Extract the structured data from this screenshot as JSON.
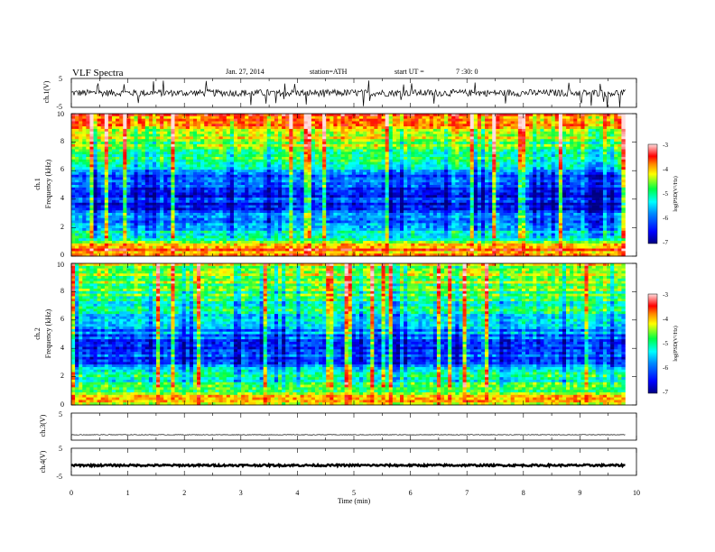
{
  "header": {
    "title": "VLF Spectra",
    "date": "Jan. 27, 2014",
    "station": "station=ATH",
    "start_label": "start UT =",
    "start_time": "7 :30: 0"
  },
  "chart_data": [
    {
      "type": "line",
      "name": "ch1-waveform",
      "ylabel": "ch.1(V)",
      "yticks": [
        "5",
        "-5"
      ],
      "ylim": [
        -5,
        5
      ],
      "xlim": [
        0,
        10
      ],
      "baseline": 0,
      "noise_amplitude": 1.2,
      "data_end_min": 9.8
    },
    {
      "type": "heatmap",
      "name": "ch1-spectrogram",
      "ylabel_line1": "ch.1",
      "ylabel_line2": "Frequency (kHz)",
      "yticks": [
        "0",
        "2",
        "4",
        "6",
        "8",
        "10"
      ],
      "ylim": [
        0,
        10
      ],
      "xlim": [
        0,
        10
      ],
      "data_end_min": 9.8,
      "colorbar": {
        "label": "log(PSD(V²/Hz)",
        "ticks": [
          "-3",
          "-4",
          "-5",
          "-6",
          "-7"
        ],
        "range": [
          -7,
          -3
        ]
      },
      "band_profile": [
        {
          "f": 0,
          "level": -4.3
        },
        {
          "f": 0.5,
          "level": -3.6
        },
        {
          "f": 1.0,
          "level": -4.9
        },
        {
          "f": 2.0,
          "level": -5.6
        },
        {
          "f": 3.5,
          "level": -6.4
        },
        {
          "f": 5.5,
          "level": -6.2
        },
        {
          "f": 6.0,
          "level": -5.5
        },
        {
          "f": 7.5,
          "level": -4.9
        },
        {
          "f": 9.0,
          "level": -4.2
        },
        {
          "f": 10.0,
          "level": -3.8
        }
      ]
    },
    {
      "type": "heatmap",
      "name": "ch2-spectrogram",
      "ylabel_line1": "ch.2",
      "ylabel_line2": "Frequency (kHz)",
      "yticks": [
        "0",
        "2",
        "4",
        "6",
        "8",
        "10"
      ],
      "ylim": [
        0,
        10
      ],
      "xlim": [
        0,
        10
      ],
      "data_end_min": 9.8,
      "colorbar": {
        "label": "log(PSD(V²/Hz)",
        "ticks": [
          "-3",
          "-4",
          "-5",
          "-6",
          "-7"
        ],
        "range": [
          -7,
          -3
        ]
      },
      "band_profile": [
        {
          "f": 0,
          "level": -4.6
        },
        {
          "f": 0.5,
          "level": -4.3
        },
        {
          "f": 1.0,
          "level": -4.8
        },
        {
          "f": 2.0,
          "level": -5.2
        },
        {
          "f": 3.0,
          "level": -6.1
        },
        {
          "f": 4.0,
          "level": -6.4
        },
        {
          "f": 5.0,
          "level": -5.9
        },
        {
          "f": 6.5,
          "level": -5.3
        },
        {
          "f": 8.0,
          "level": -4.9
        },
        {
          "f": 10.0,
          "level": -4.5
        }
      ]
    },
    {
      "type": "line",
      "name": "ch3-waveform",
      "ylabel": "ch.3(V)",
      "yticks": [
        "5"
      ],
      "ylim": [
        -5,
        5
      ],
      "xlim": [
        0,
        10
      ],
      "baseline": -3.0,
      "noise_amplitude": 0.1,
      "data_end_min": 9.8
    },
    {
      "type": "line",
      "name": "ch4-waveform",
      "ylabel": "ch.4(V)",
      "yticks": [
        "5",
        "-5"
      ],
      "ylim": [
        -5,
        5
      ],
      "xlim": [
        0,
        10
      ],
      "baseline": -1.3,
      "noise_amplitude": 0.35,
      "data_end_min": 9.8
    }
  ],
  "xaxis": {
    "label": "Time (min)",
    "ticks": [
      "0",
      "1",
      "2",
      "3",
      "4",
      "5",
      "6",
      "7",
      "8",
      "9",
      "10"
    ]
  },
  "colors": {
    "trace": "#000000",
    "frame": "#000000"
  }
}
